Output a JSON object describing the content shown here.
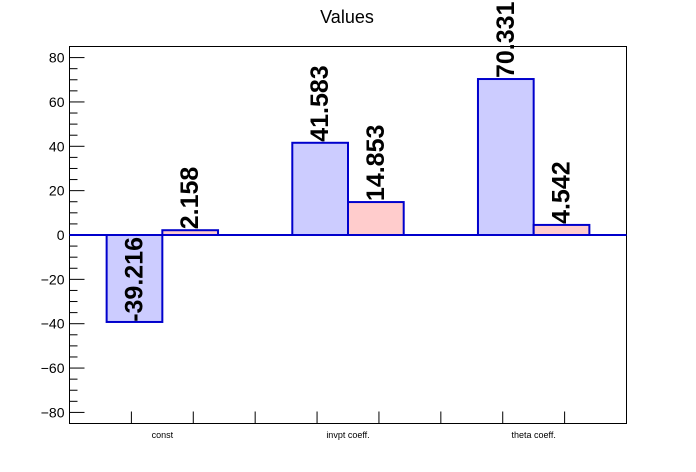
{
  "chart_data": {
    "type": "bar",
    "title": "Values",
    "xlabel": "",
    "ylabel": "",
    "categories": [
      "const",
      "invpt coeff.",
      "theta coeff."
    ],
    "series": [
      {
        "values": [
          -39.216,
          41.583,
          70.331
        ],
        "labels": [
          "-39.216",
          "41.583",
          "70.331"
        ],
        "fill": "#ccccff",
        "stroke": "#0000cc"
      },
      {
        "values": [
          2.158,
          14.853,
          4.542
        ],
        "labels": [
          "2.158",
          "14.853",
          "4.542"
        ],
        "fill": "#ffcccc",
        "stroke": "#0000cc"
      }
    ],
    "ylim": [
      -85,
      85
    ],
    "yticks": [
      -80,
      -60,
      -40,
      -20,
      0,
      20,
      40,
      60,
      80
    ],
    "ytick_labels": [
      "−80",
      "−60",
      "−40",
      "−20",
      "0",
      "20",
      "40",
      "60",
      "80"
    ],
    "grid": false,
    "legend": "none"
  }
}
